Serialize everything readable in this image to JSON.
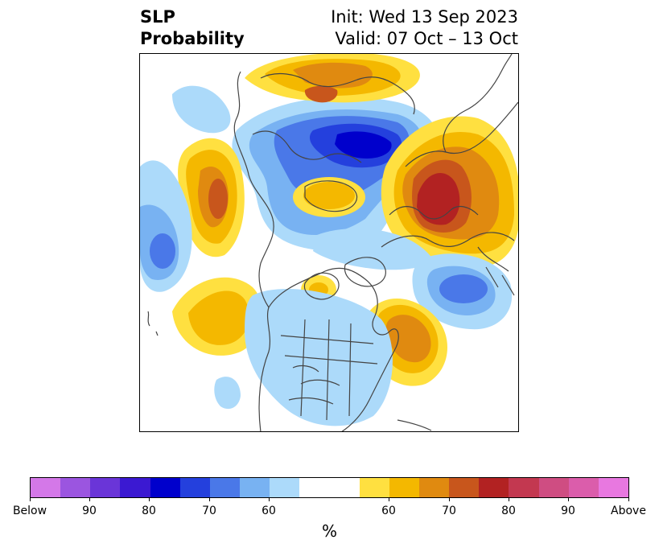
{
  "title": {
    "left_line1": "SLP",
    "left_line2": "Probability",
    "right_line1": "Init: Wed 13 Sep 2023",
    "right_line2": "Valid: 07 Oct – 13 Oct"
  },
  "colorbar": {
    "unit": "%",
    "segments": [
      {
        "color": "#d478e8"
      },
      {
        "color": "#9b55e0"
      },
      {
        "color": "#6a35d8"
      },
      {
        "color": "#3b19d2"
      },
      {
        "color": "#0000cc"
      },
      {
        "color": "#2440dd"
      },
      {
        "color": "#4a78e8"
      },
      {
        "color": "#78b2f2"
      },
      {
        "color": "#acdafa"
      },
      {
        "color": "#ffffff",
        "wide": true
      },
      {
        "color": "#ffe040"
      },
      {
        "color": "#f4b800"
      },
      {
        "color": "#e08a10"
      },
      {
        "color": "#c8561c"
      },
      {
        "color": "#b22222"
      },
      {
        "color": "#c33850"
      },
      {
        "color": "#cf4d82"
      },
      {
        "color": "#db5dab"
      },
      {
        "color": "#e878e0"
      }
    ],
    "tick_labels": {
      "below": "Below",
      "b90": "90",
      "b80": "80",
      "b70": "70",
      "b60": "60",
      "a60": "60",
      "a70": "70",
      "a80": "80",
      "a90": "90",
      "above": "Above"
    }
  },
  "map": {
    "projection": "north polar stereographic",
    "coastline_color": "#444444",
    "anomaly_regions": [
      {
        "name": "alaska-arctic-below",
        "category": "below",
        "max_prob": "80"
      },
      {
        "name": "north-pacific-above",
        "category": "above",
        "max_prob": "70"
      },
      {
        "name": "pacific-west-below",
        "category": "below",
        "max_prob": "70"
      },
      {
        "name": "north-atlantic-above",
        "category": "above",
        "max_prob": "70"
      },
      {
        "name": "north-atlantic-below",
        "category": "below",
        "max_prob": "70"
      },
      {
        "name": "europe-russia-above",
        "category": "above",
        "max_prob": "80"
      },
      {
        "name": "siberia-north-above",
        "category": "above",
        "max_prob": "70"
      },
      {
        "name": "north-america-below",
        "category": "below",
        "max_prob": "60"
      }
    ]
  }
}
